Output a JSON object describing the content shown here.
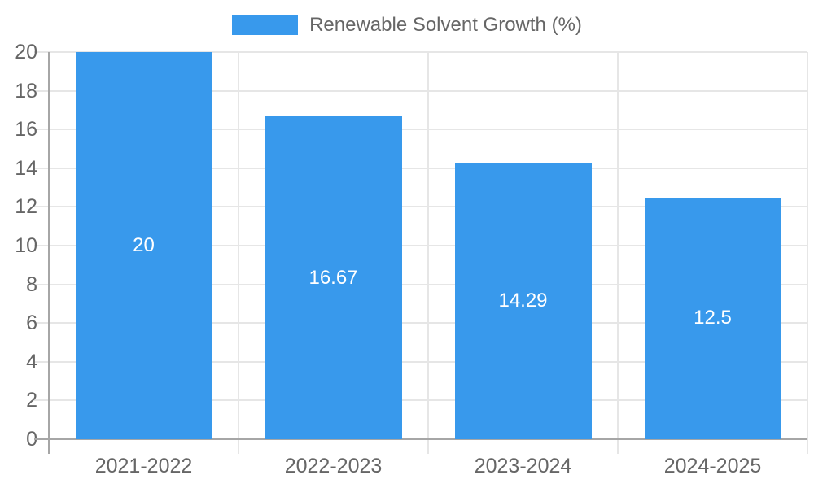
{
  "legend": {
    "label": "Renewable Solvent Growth (%)"
  },
  "colors": {
    "bar": "#3899ec",
    "grid": "#e6e6e6",
    "axis": "#a6a6a6",
    "tick_label": "#666666",
    "value_label": "#ffffff"
  },
  "chart_data": {
    "type": "bar",
    "title": "",
    "series_name": "Renewable Solvent Growth (%)",
    "categories": [
      "2021-2022",
      "2022-2023",
      "2023-2024",
      "2024-2025"
    ],
    "values": [
      20,
      16.67,
      14.29,
      12.5
    ],
    "value_labels": [
      "20",
      "16.67",
      "14.29",
      "12.5"
    ],
    "xlabel": "",
    "ylabel": "",
    "ylim": [
      0,
      20
    ],
    "ytick_step": 2,
    "yticks": [
      0,
      2,
      4,
      6,
      8,
      10,
      12,
      14,
      16,
      18,
      20
    ],
    "grid": true,
    "legend_position": "top"
  }
}
